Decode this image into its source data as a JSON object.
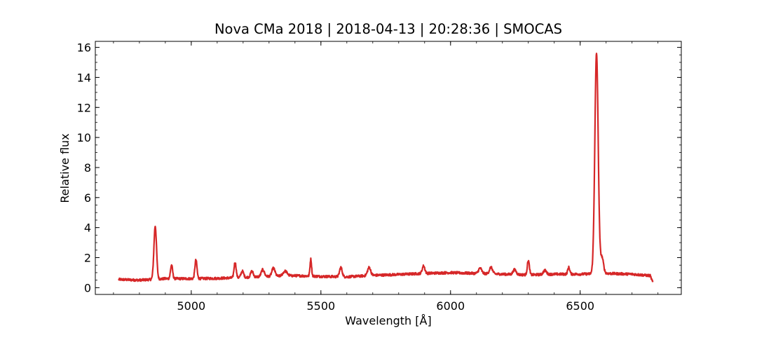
{
  "chart_data": {
    "type": "line",
    "title": "Nova CMa 2018 | 2018-04-13 | 20:28:36 | SMOCAS",
    "xlabel": "Wavelength [Å]",
    "ylabel": "Relative flux",
    "xlim": [
      4630,
      6890
    ],
    "ylim": [
      -0.45,
      16.4
    ],
    "x_ticks": [
      5000,
      5500,
      6000,
      6500
    ],
    "y_ticks": [
      0,
      2,
      4,
      6,
      8,
      10,
      12,
      14,
      16
    ],
    "x_minor_step": 100,
    "y_minor_step": 0.5,
    "tick_direction": "in",
    "grid": false,
    "legend": false,
    "x_range": [
      4720,
      6780
    ],
    "series": [
      {
        "color": "#d62728",
        "continuum": [
          [
            4720,
            0.55
          ],
          [
            4800,
            0.5
          ],
          [
            4900,
            0.6
          ],
          [
            5000,
            0.6
          ],
          [
            5100,
            0.62
          ],
          [
            5200,
            0.68
          ],
          [
            5300,
            0.75
          ],
          [
            5400,
            0.8
          ],
          [
            5500,
            0.75
          ],
          [
            5600,
            0.72
          ],
          [
            5700,
            0.82
          ],
          [
            5800,
            0.88
          ],
          [
            5900,
            0.95
          ],
          [
            6000,
            1.0
          ],
          [
            6100,
            0.95
          ],
          [
            6200,
            0.9
          ],
          [
            6300,
            0.85
          ],
          [
            6400,
            0.9
          ],
          [
            6500,
            0.9
          ],
          [
            6600,
            0.95
          ],
          [
            6700,
            0.9
          ],
          [
            6770,
            0.8
          ],
          [
            6780,
            0.35
          ]
        ],
        "emission_lines": [
          {
            "x": 4861,
            "peak": 4.1,
            "width": 5
          },
          {
            "x": 4924,
            "peak": 1.5,
            "width": 4
          },
          {
            "x": 5018,
            "peak": 1.85,
            "width": 4
          },
          {
            "x": 5169,
            "peak": 1.7,
            "width": 4
          },
          {
            "x": 5197,
            "peak": 1.1,
            "width": 5
          },
          {
            "x": 5234,
            "peak": 1.1,
            "width": 5
          },
          {
            "x": 5276,
            "peak": 1.2,
            "width": 6
          },
          {
            "x": 5317,
            "peak": 1.3,
            "width": 6
          },
          {
            "x": 5362,
            "peak": 1.1,
            "width": 8
          },
          {
            "x": 5461,
            "peak": 1.9,
            "width": 3
          },
          {
            "x": 5577,
            "peak": 1.35,
            "width": 5
          },
          {
            "x": 5686,
            "peak": 1.35,
            "width": 6
          },
          {
            "x": 5896,
            "peak": 1.45,
            "width": 5
          },
          {
            "x": 6114,
            "peak": 1.3,
            "width": 6
          },
          {
            "x": 6156,
            "peak": 1.35,
            "width": 6
          },
          {
            "x": 6247,
            "peak": 1.2,
            "width": 6
          },
          {
            "x": 6300,
            "peak": 1.8,
            "width": 4
          },
          {
            "x": 6364,
            "peak": 1.15,
            "width": 6
          },
          {
            "x": 6456,
            "peak": 1.35,
            "width": 4
          },
          {
            "x": 6563,
            "peak": 15.6,
            "width": 6.5
          },
          {
            "x": 6584,
            "peak": 2.0,
            "width": 6
          }
        ]
      }
    ]
  }
}
